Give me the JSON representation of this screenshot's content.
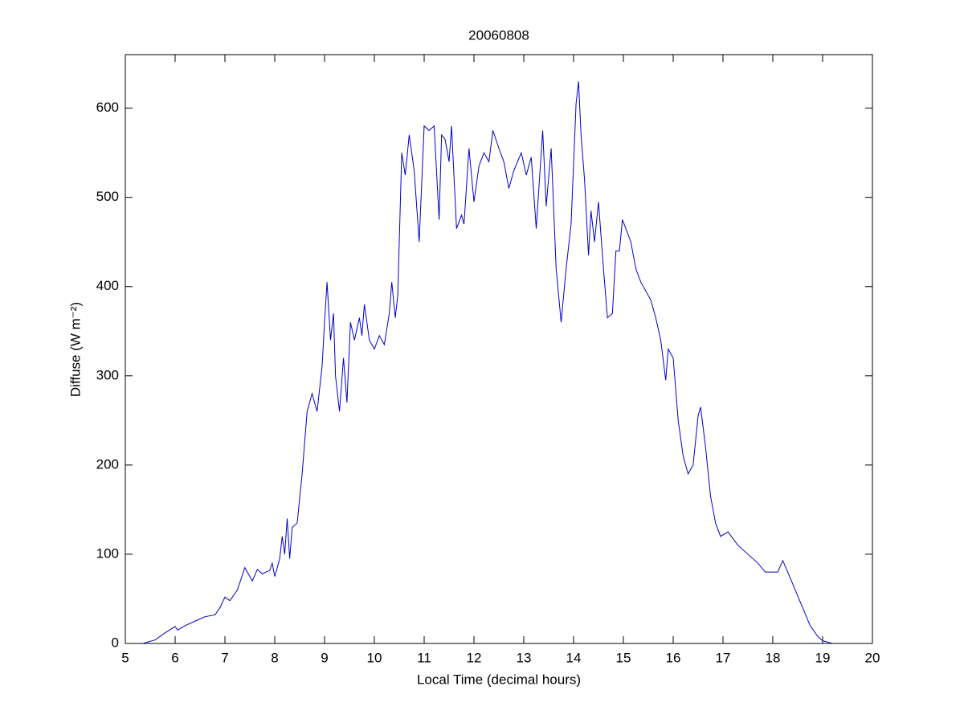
{
  "chart_data": {
    "type": "line",
    "title": "20060808",
    "xlabel": "Local Time (decimal hours)",
    "ylabel": "Diffuse (W m⁻²)",
    "x": [
      5.35,
      5.6,
      5.8,
      6.0,
      6.05,
      6.2,
      6.4,
      6.6,
      6.8,
      6.9,
      7.0,
      7.1,
      7.25,
      7.4,
      7.55,
      7.65,
      7.75,
      7.9,
      7.95,
      8.0,
      8.1,
      8.15,
      8.2,
      8.25,
      8.3,
      8.35,
      8.45,
      8.55,
      8.65,
      8.75,
      8.85,
      8.95,
      9.0,
      9.05,
      9.12,
      9.18,
      9.22,
      9.3,
      9.38,
      9.45,
      9.52,
      9.6,
      9.7,
      9.75,
      9.8,
      9.9,
      10.0,
      10.1,
      10.2,
      10.3,
      10.35,
      10.42,
      10.47,
      10.55,
      10.62,
      10.7,
      10.8,
      10.9,
      11.0,
      11.1,
      11.2,
      11.3,
      11.35,
      11.42,
      11.5,
      11.55,
      11.65,
      11.75,
      11.8,
      11.9,
      12.0,
      12.1,
      12.2,
      12.3,
      12.38,
      12.5,
      12.6,
      12.7,
      12.8,
      12.95,
      13.05,
      13.15,
      13.25,
      13.38,
      13.45,
      13.55,
      13.65,
      13.75,
      13.85,
      13.95,
      14.05,
      14.1,
      14.15,
      14.22,
      14.3,
      14.35,
      14.42,
      14.5,
      14.6,
      14.68,
      14.78,
      14.85,
      14.92,
      14.98,
      15.05,
      15.15,
      15.25,
      15.35,
      15.45,
      15.55,
      15.65,
      15.75,
      15.85,
      15.9,
      16.0,
      16.1,
      16.2,
      16.3,
      16.4,
      16.5,
      16.55,
      16.65,
      16.75,
      16.85,
      16.95,
      17.1,
      17.3,
      17.5,
      17.7,
      17.85,
      18.0,
      18.1,
      18.2,
      18.3,
      18.45,
      18.6,
      18.75,
      18.9,
      19.0,
      19.2
    ],
    "series": [
      {
        "color": "#0000cc",
        "values": [
          0,
          4,
          12,
          19,
          15,
          20,
          25,
          30,
          32,
          40,
          52,
          48,
          60,
          85,
          70,
          83,
          78,
          82,
          90,
          75,
          95,
          120,
          100,
          140,
          95,
          130,
          135,
          190,
          260,
          280,
          260,
          310,
          360,
          405,
          340,
          370,
          300,
          260,
          320,
          270,
          360,
          340,
          365,
          345,
          380,
          340,
          330,
          345,
          335,
          370,
          405,
          365,
          390,
          550,
          525,
          570,
          530,
          450,
          580,
          575,
          580,
          475,
          570,
          565,
          540,
          580,
          465,
          480,
          470,
          555,
          495,
          535,
          550,
          540,
          575,
          555,
          540,
          510,
          530,
          550,
          525,
          545,
          465,
          575,
          490,
          555,
          420,
          360,
          420,
          470,
          605,
          630,
          570,
          520,
          435,
          485,
          450,
          495,
          420,
          365,
          370,
          440,
          440,
          475,
          465,
          450,
          420,
          405,
          395,
          385,
          365,
          340,
          295,
          330,
          320,
          250,
          210,
          190,
          200,
          255,
          265,
          220,
          165,
          135,
          120,
          125,
          110,
          100,
          90,
          80,
          80,
          80,
          93,
          80,
          60,
          40,
          20,
          8,
          3,
          0
        ]
      }
    ],
    "xlim": [
      5,
      20
    ],
    "xticks": [
      5,
      6,
      7,
      8,
      9,
      10,
      11,
      12,
      13,
      14,
      15,
      16,
      17,
      18,
      19,
      20
    ],
    "ylim": [
      0,
      660
    ],
    "yticks": [
      0,
      100,
      200,
      300,
      400,
      500,
      600
    ]
  }
}
